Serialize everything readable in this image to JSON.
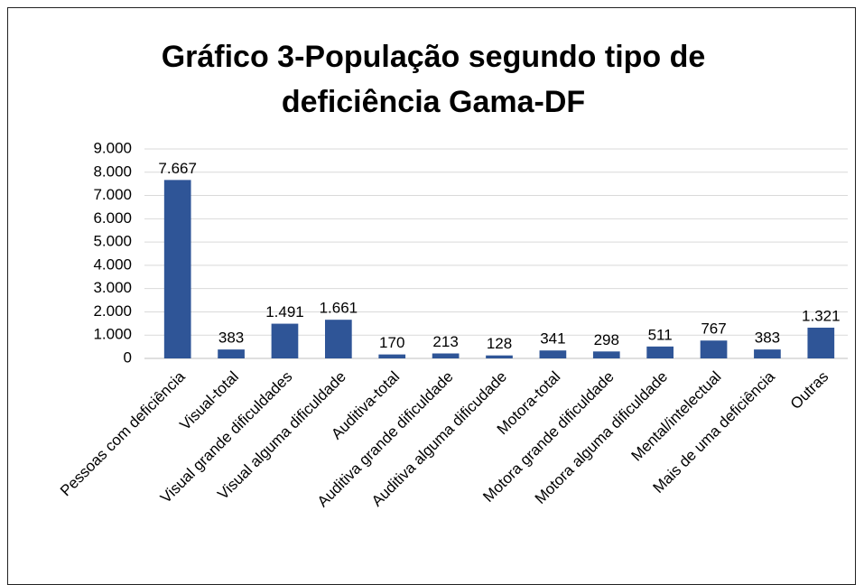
{
  "chart_data": {
    "type": "bar",
    "title": "Gráfico 3-População segundo tipo de deficiência Gama-DF",
    "categories": [
      "Pessoas com deficiência",
      "Visual-total",
      "Visual grande dificuldades",
      "Visual alguma dificuldade",
      "Auditiva-total",
      "Auditiva grande dificuldade",
      "Auditiva alguma dificudade",
      "Motora-total",
      "Motora grande dificuldade",
      "Motora alguma dificuldade",
      "Mental/intelectual",
      "Mais de uma deficiência",
      "Outras"
    ],
    "values": [
      7667,
      383,
      1491,
      1661,
      170,
      213,
      128,
      341,
      298,
      511,
      767,
      383,
      1321
    ],
    "value_labels": [
      "7.667",
      "383",
      "1.491",
      "1.661",
      "170",
      "213",
      "128",
      "341",
      "298",
      "511",
      "767",
      "383",
      "1.321"
    ],
    "color": "#2f5597",
    "ylim": [
      0,
      9000
    ],
    "yticks": [
      0,
      {
        "value": 1000,
        "label": "1.000"
      },
      {
        "value": 2000,
        "label": "2.000"
      },
      {
        "value": 3000,
        "label": "3.000"
      },
      {
        "value": 4000,
        "label": "4.000"
      },
      {
        "value": 5000,
        "label": "5.000"
      },
      {
        "value": 6000,
        "label": "6.000"
      },
      {
        "value": 7000,
        "label": "7.000"
      },
      {
        "value": 8000,
        "label": "8.000"
      },
      {
        "value": 9000,
        "label": "9.000"
      }
    ],
    "grid": true
  }
}
